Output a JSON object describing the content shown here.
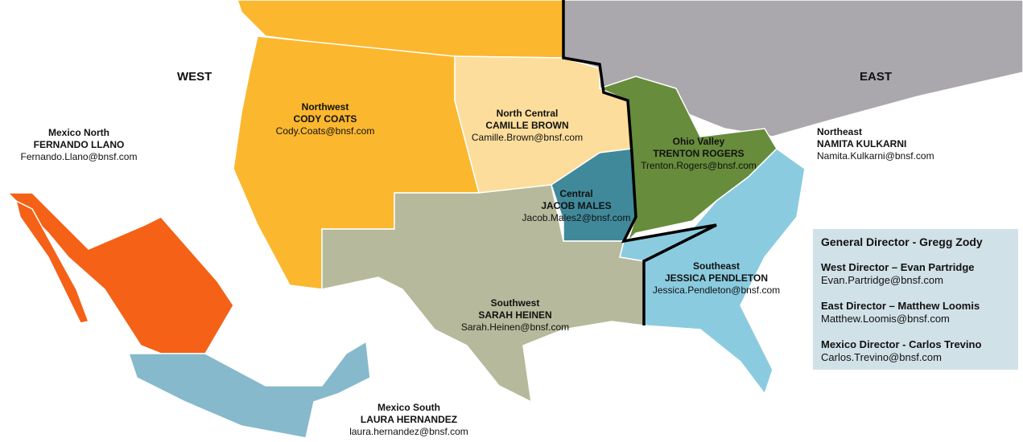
{
  "headings": {
    "west": "WEST",
    "east": "EAST"
  },
  "colors": {
    "northwest": "#fbb72e",
    "north_central": "#fddd9b",
    "central": "#40899a",
    "southwest": "#b6b99b",
    "ohio_valley": "#678c3c",
    "southeast": "#8bcbdf",
    "northeast": "#aaa8ad",
    "mexico_north": "#f46117",
    "mexico_south": "#86b9cb",
    "boundary": "#000000"
  },
  "regions": [
    {
      "title": "Northwest",
      "name": "CODY COATS",
      "email": "Cody.Coats@bnsf.com"
    },
    {
      "title": "North Central",
      "name": "CAMILLE BROWN",
      "email": "Camille.Brown@bnsf.com"
    },
    {
      "title": "Central",
      "name": "JACOB MALES",
      "email": "Jacob.Males2@bnsf.com"
    },
    {
      "title": "Ohio Valley",
      "name": "TRENTON ROGERS",
      "email": "Trenton.Rogers@bnsf.com"
    },
    {
      "title": "Northeast",
      "name": "NAMITA KULKARNI",
      "email": "Namita.Kulkarni@bnsf.com"
    },
    {
      "title": "Southwest",
      "name": "SARAH HEINEN",
      "email": "Sarah.Heinen@bnsf.com"
    },
    {
      "title": "Southeast",
      "name": "JESSICA PENDLETON",
      "email": "Jessica.Pendleton@bnsf.com"
    },
    {
      "title": "Mexico North",
      "name": "FERNANDO LLANO",
      "email": "Fernando.Llano@bnsf.com"
    },
    {
      "title": "Mexico South",
      "name": "LAURA HERNANDEZ",
      "email": "laura.hernandez@bnsf.com"
    }
  ],
  "directors": {
    "general": "General Director - Gregg Zody",
    "list": [
      {
        "title": "West Director – Evan Partridge",
        "email": "Evan.Partridge@bnsf.com"
      },
      {
        "title": "East Director – Matthew Loomis",
        "email": "Matthew.Loomis@bnsf.com"
      },
      {
        "title": "Mexico Director - Carlos Trevino",
        "email": "Carlos.Trevino@bnsf.com"
      }
    ]
  }
}
